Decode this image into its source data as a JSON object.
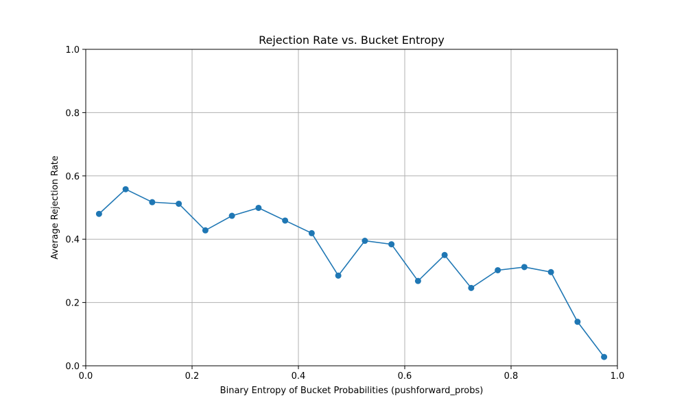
{
  "chart_data": {
    "type": "line",
    "title": "Rejection Rate vs. Bucket Entropy",
    "xlabel": "Binary Entropy of Bucket Probabilities (pushforward_probs)",
    "ylabel": "Average Rejection Rate",
    "xlim": [
      0,
      1
    ],
    "ylim": [
      0,
      1
    ],
    "xticks": [
      "0.0",
      "0.2",
      "0.4",
      "0.6",
      "0.8",
      "1.0"
    ],
    "yticks": [
      "0.0",
      "0.2",
      "0.4",
      "0.6",
      "0.8",
      "1.0"
    ],
    "grid": true,
    "color": "#1f77b4",
    "series": [
      {
        "x": [
          0.025,
          0.075,
          0.125,
          0.175,
          0.225,
          0.275,
          0.325,
          0.375,
          0.425,
          0.475,
          0.525,
          0.575,
          0.625,
          0.675,
          0.725,
          0.775,
          0.825,
          0.875,
          0.925,
          0.975
        ],
        "y": [
          0.48,
          0.558,
          0.517,
          0.512,
          0.428,
          0.474,
          0.499,
          0.459,
          0.419,
          0.285,
          0.395,
          0.384,
          0.268,
          0.35,
          0.246,
          0.302,
          0.312,
          0.296,
          0.139,
          0.028
        ]
      }
    ]
  }
}
